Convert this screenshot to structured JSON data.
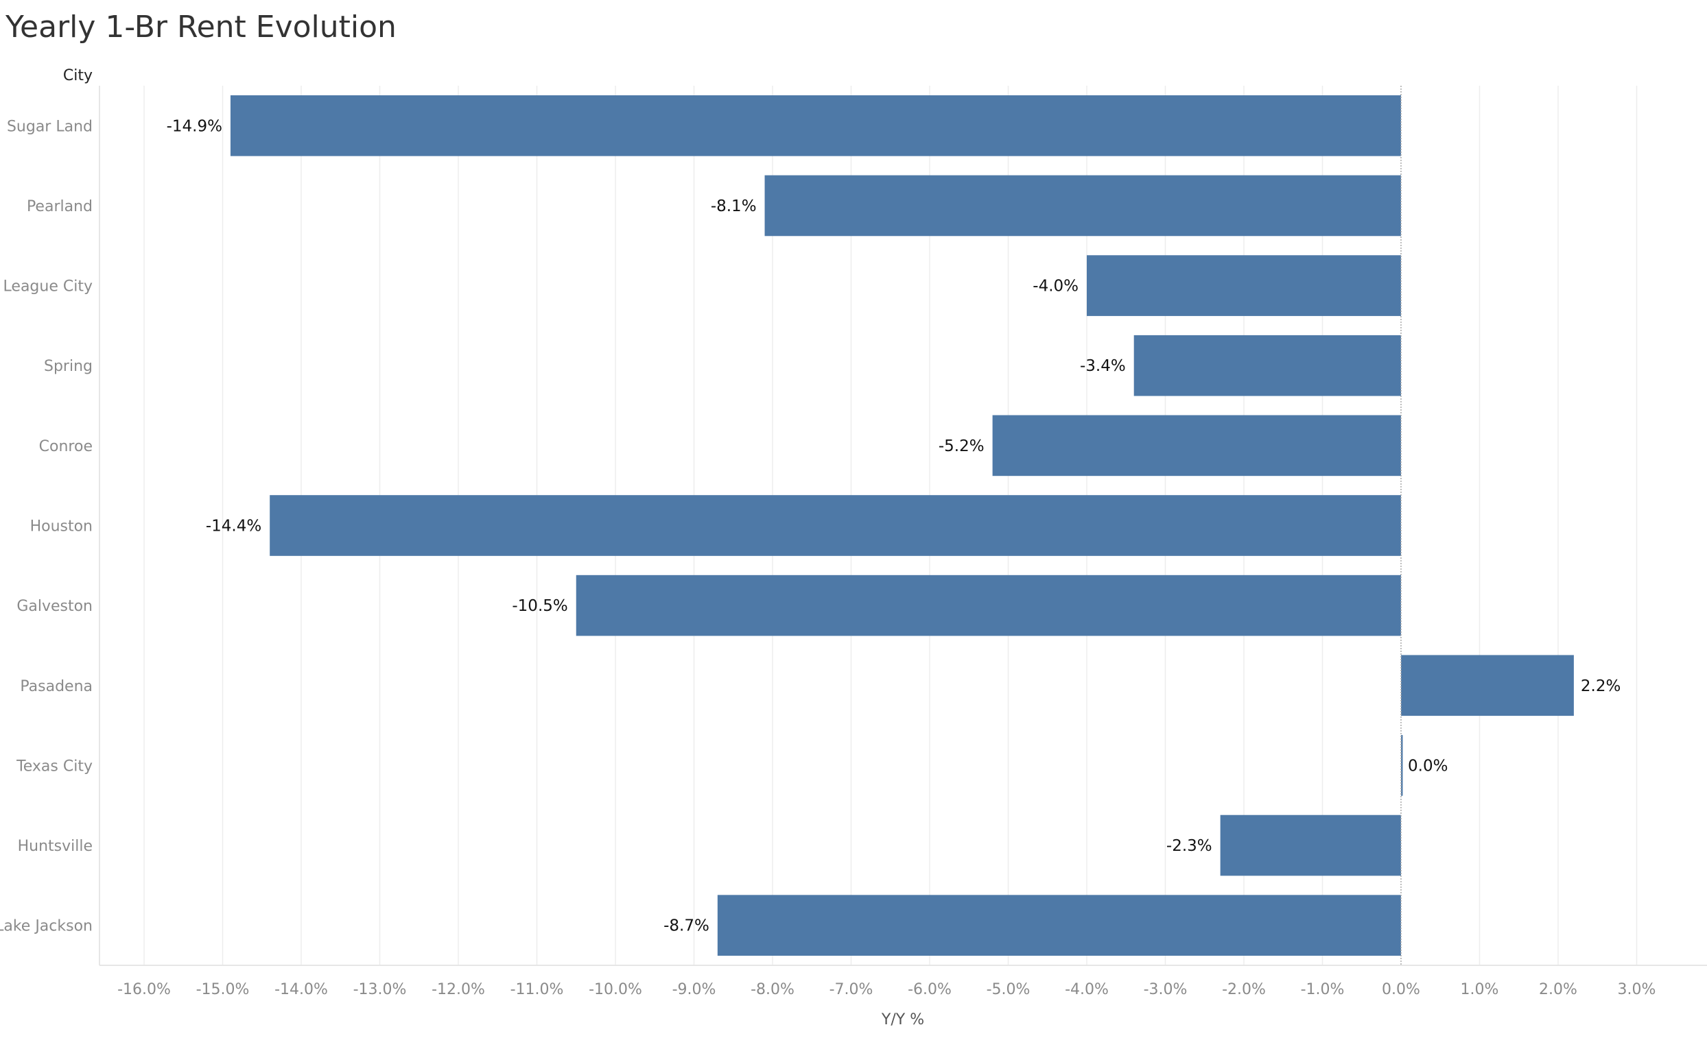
{
  "chart_data": {
    "type": "bar",
    "orientation": "horizontal",
    "title": "Yearly 1-Br Rent Evolution",
    "row_header": "City",
    "xlabel": "Y/Y %",
    "ylabel": "",
    "xlim": [
      -16.6,
      3.9
    ],
    "ticks": [
      -16,
      -15,
      -14,
      -13,
      -12,
      -11,
      -10,
      -9,
      -8,
      -7,
      -6,
      -5,
      -4,
      -3,
      -2,
      -1,
      0,
      1,
      2,
      3
    ],
    "tick_format": "percent_1dp",
    "grid": true,
    "categories": [
      "Sugar Land",
      "Pearland",
      "League City",
      "Spring",
      "Conroe",
      "Houston",
      "Galveston",
      "Pasadena",
      "Texas City",
      "Huntsville",
      "Lake Jackson"
    ],
    "values": [
      -14.9,
      -8.1,
      -4.0,
      -3.4,
      -5.2,
      -14.4,
      -10.5,
      2.2,
      0.0,
      -2.3,
      -8.7
    ],
    "colors": {
      "bar": "#4e79a7"
    }
  }
}
